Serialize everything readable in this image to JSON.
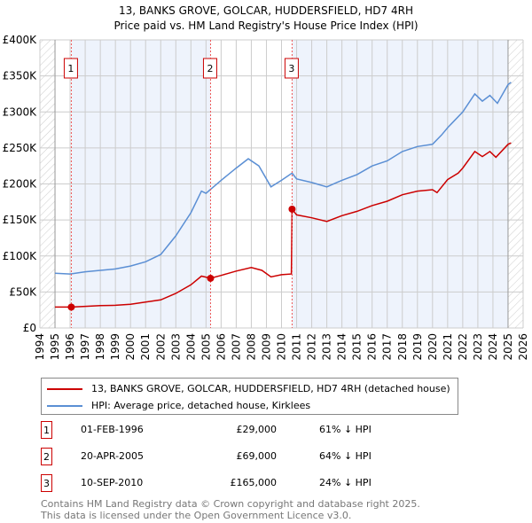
{
  "chart_data": {
    "type": "line",
    "title": "13, BANKS GROVE, GOLCAR, HUDDERSFIELD, HD7 4RH",
    "subtitle": "Price paid vs. HM Land Registry's House Price Index (HPI)",
    "xlim": [
      1994,
      2026
    ],
    "ylim": [
      0,
      400000
    ],
    "yticks": [
      {
        "v": 0,
        "label": "£0"
      },
      {
        "v": 50000,
        "label": "£50K"
      },
      {
        "v": 100000,
        "label": "£100K"
      },
      {
        "v": 150000,
        "label": "£150K"
      },
      {
        "v": 200000,
        "label": "£200K"
      },
      {
        "v": 250000,
        "label": "£250K"
      },
      {
        "v": 300000,
        "label": "£300K"
      },
      {
        "v": 350000,
        "label": "£350K"
      },
      {
        "v": 400000,
        "label": "£400K"
      }
    ],
    "xticks": [
      "1994",
      "1995",
      "1996",
      "1997",
      "1998",
      "1999",
      "2000",
      "2001",
      "2002",
      "2003",
      "2004",
      "2005",
      "2006",
      "2007",
      "2008",
      "2009",
      "2010",
      "2011",
      "2012",
      "2013",
      "2014",
      "2015",
      "2016",
      "2017",
      "2018",
      "2019",
      "2020",
      "2021",
      "2022",
      "2023",
      "2024",
      "2025",
      "2026"
    ],
    "colors": {
      "property": "#cc0000",
      "hpi": "#5b8fd4",
      "shade": "#eef3fc"
    },
    "series": [
      {
        "name": "13, BANKS GROVE, GOLCAR, HUDDERSFIELD, HD7 4RH (detached house)",
        "color": "#cc0000",
        "points": [
          [
            1995,
            29000
          ],
          [
            1996.08,
            29000
          ],
          [
            1997,
            30000
          ],
          [
            1998,
            31000
          ],
          [
            1999,
            31500
          ],
          [
            2000,
            33000
          ],
          [
            2001,
            36000
          ],
          [
            2002,
            39000
          ],
          [
            2003,
            48000
          ],
          [
            2004,
            60000
          ],
          [
            2004.7,
            72000
          ],
          [
            2005.3,
            69000
          ],
          [
            2006,
            73000
          ],
          [
            2007,
            79000
          ],
          [
            2008,
            84000
          ],
          [
            2008.7,
            80000
          ],
          [
            2009.3,
            71000
          ],
          [
            2010,
            74000
          ],
          [
            2010.65,
            75000
          ],
          [
            2010.7,
            165000
          ],
          [
            2011,
            157000
          ],
          [
            2012,
            153000
          ],
          [
            2013,
            148000
          ],
          [
            2014,
            156000
          ],
          [
            2015,
            162000
          ],
          [
            2016,
            170000
          ],
          [
            2017,
            176000
          ],
          [
            2018,
            185000
          ],
          [
            2019,
            190000
          ],
          [
            2020,
            192000
          ],
          [
            2020.3,
            188000
          ],
          [
            2021,
            206000
          ],
          [
            2021.7,
            215000
          ],
          [
            2022,
            222000
          ],
          [
            2022.8,
            245000
          ],
          [
            2023.3,
            238000
          ],
          [
            2023.8,
            245000
          ],
          [
            2024.2,
            237000
          ],
          [
            2025,
            255000
          ],
          [
            2025.2,
            257000
          ]
        ]
      },
      {
        "name": "HPI: Average price, detached house, Kirklees",
        "color": "#5b8fd4",
        "points": [
          [
            1995,
            76000
          ],
          [
            1996,
            75000
          ],
          [
            1997,
            78000
          ],
          [
            1998,
            80000
          ],
          [
            1999,
            82000
          ],
          [
            2000,
            86000
          ],
          [
            2001,
            92000
          ],
          [
            2002,
            102000
          ],
          [
            2003,
            128000
          ],
          [
            2004,
            160000
          ],
          [
            2004.7,
            190000
          ],
          [
            2005,
            187000
          ],
          [
            2006,
            205000
          ],
          [
            2007,
            222000
          ],
          [
            2007.8,
            235000
          ],
          [
            2008.5,
            225000
          ],
          [
            2009.3,
            196000
          ],
          [
            2010,
            205000
          ],
          [
            2010.7,
            215000
          ],
          [
            2011,
            207000
          ],
          [
            2012,
            202000
          ],
          [
            2013,
            196000
          ],
          [
            2014,
            205000
          ],
          [
            2015,
            213000
          ],
          [
            2016,
            225000
          ],
          [
            2017,
            232000
          ],
          [
            2018,
            245000
          ],
          [
            2019,
            252000
          ],
          [
            2020,
            255000
          ],
          [
            2020.6,
            268000
          ],
          [
            2021,
            278000
          ],
          [
            2022,
            300000
          ],
          [
            2022.8,
            325000
          ],
          [
            2023.3,
            315000
          ],
          [
            2023.8,
            323000
          ],
          [
            2024.3,
            312000
          ],
          [
            2025,
            338000
          ],
          [
            2025.2,
            341000
          ]
        ]
      }
    ],
    "sales": [
      {
        "label": "1",
        "x": 1996.08,
        "price": 29000,
        "date": "01-FEB-1996",
        "price_text": "£29,000",
        "hpi_text": "61% ↓ HPI"
      },
      {
        "label": "2",
        "x": 2005.3,
        "price": 69000,
        "date": "20-APR-2005",
        "price_text": "£69,000",
        "hpi_text": "64% ↓ HPI"
      },
      {
        "label": "3",
        "x": 2010.7,
        "price": 165000,
        "date": "10-SEP-2010",
        "price_text": "£165,000",
        "hpi_text": "24% ↓ HPI"
      }
    ]
  },
  "legend": {
    "property": "13, BANKS GROVE, GOLCAR, HUDDERSFIELD, HD7 4RH (detached house)",
    "hpi": "HPI: Average price, detached house, Kirklees"
  },
  "footer": {
    "line1": "Contains HM Land Registry data © Crown copyright and database right 2025.",
    "line2": "This data is licensed under the Open Government Licence v3.0."
  }
}
